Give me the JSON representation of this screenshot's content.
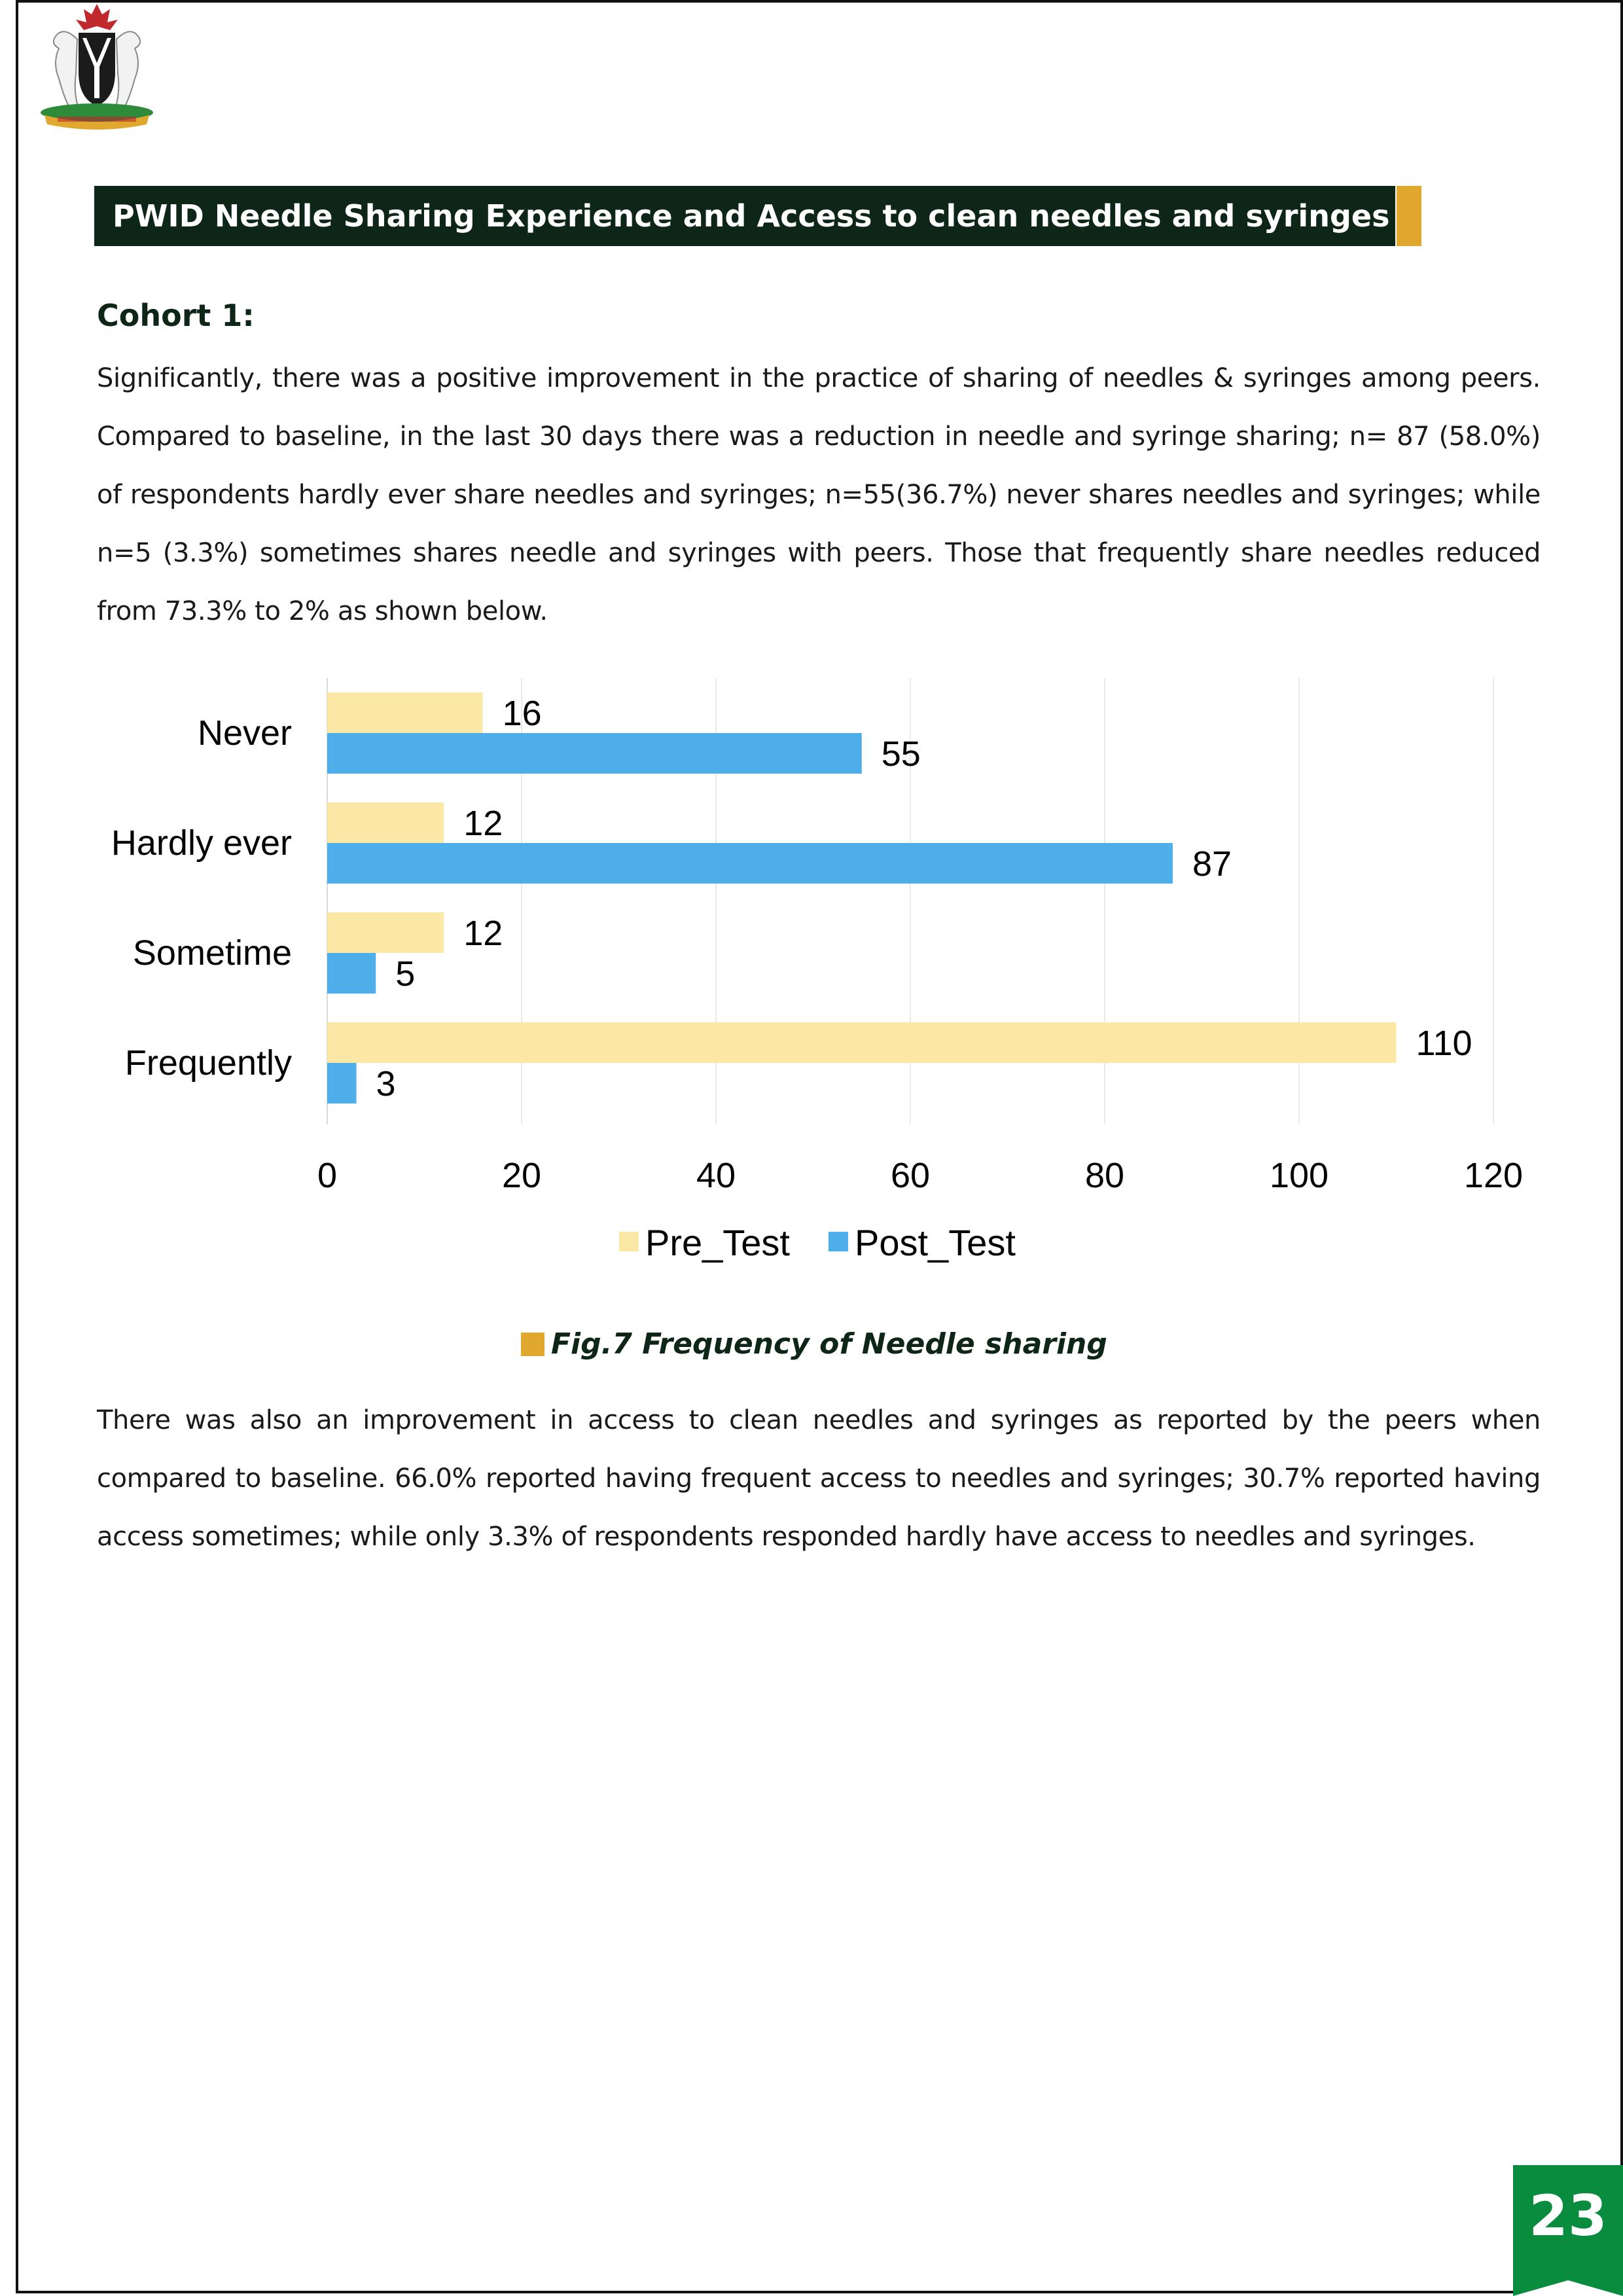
{
  "header": {
    "title": "PWID Needle Sharing Experience and Access to clean needles and syringes"
  },
  "section": {
    "heading": "Cohort 1:",
    "paragraph_1": "Significantly, there was a positive improvement in the practice of sharing of needles & syringes among peers. Compared to baseline, in the last 30 days there was a reduction in needle and syringe sharing; n= 87 (58.0%) of respondents hardly ever share needles and syringes; n=55(36.7%) never shares needles and syringes; while n=5 (3.3%) sometimes shares needle and syringes with peers. Those that frequently share needles reduced from 73.3% to 2% as shown below.",
    "figure_caption": "Fig.7 Frequency of Needle sharing",
    "paragraph_2": "There was also an improvement in access to clean needles and syringes as reported by the peers when compared to baseline. 66.0% reported having frequent access to needles and syringes; 30.7% reported having access sometimes; while only 3.3% of respondents responded hardly have access to needles and syringes."
  },
  "chart_data": {
    "type": "bar",
    "orientation": "horizontal",
    "categories": [
      "Never",
      "Hardly ever",
      "Sometime",
      "Frequently"
    ],
    "series": [
      {
        "name": "Pre_Test",
        "values": [
          16,
          12,
          12,
          110
        ],
        "color": "#fbe8a6"
      },
      {
        "name": "Post_Test",
        "values": [
          55,
          87,
          5,
          3
        ],
        "color": "#4eaeea"
      }
    ],
    "xlim": [
      0,
      120
    ],
    "xticks": [
      0,
      20,
      40,
      60,
      80,
      100,
      120
    ],
    "grid": true,
    "legend": "bottom-center"
  },
  "footer": {
    "page_number": "23",
    "badge_color": "#0a8c3f"
  },
  "colors": {
    "header_bg": "#0d2618",
    "accent": "#e0a82e"
  }
}
